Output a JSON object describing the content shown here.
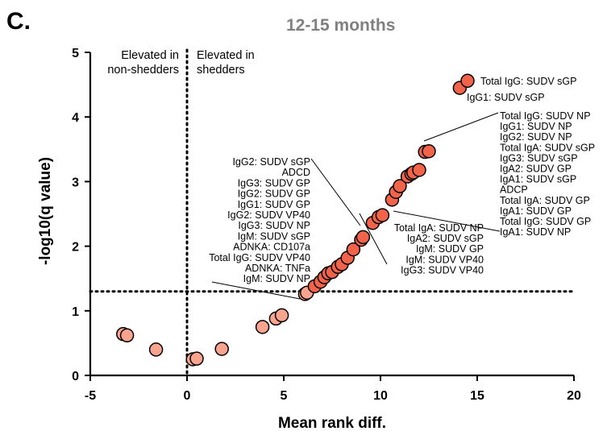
{
  "panel_letter": "C.",
  "chart_data": {
    "type": "scatter",
    "title": "12-15 months",
    "xlabel": "Mean rank diff.",
    "ylabel": "-log10(q value)",
    "xlim": [
      -5,
      20
    ],
    "ylim": [
      0,
      5
    ],
    "xticks": [
      "-5",
      "0",
      "5",
      "10",
      "15",
      "20"
    ],
    "yticks": [
      "0",
      "1",
      "2",
      "3",
      "4",
      "5"
    ],
    "reference_lines": {
      "x": 0,
      "y": 1.3
    },
    "region_labels": {
      "left": [
        "Elevated in",
        "non-shedders"
      ],
      "right": [
        "Elevated in",
        "shedders"
      ]
    },
    "points": [
      {
        "x": -3.3,
        "y": 0.64
      },
      {
        "x": -3.1,
        "y": 0.62
      },
      {
        "x": -1.6,
        "y": 0.4
      },
      {
        "x": 0.3,
        "y": 0.25
      },
      {
        "x": 0.5,
        "y": 0.26
      },
      {
        "x": 1.8,
        "y": 0.41
      },
      {
        "x": 3.9,
        "y": 0.75
      },
      {
        "x": 4.6,
        "y": 0.88
      },
      {
        "x": 4.9,
        "y": 0.93
      },
      {
        "x": 6.1,
        "y": 1.26
      },
      {
        "x": 6.2,
        "y": 1.28
      },
      {
        "x": 6.6,
        "y": 1.38
      },
      {
        "x": 6.9,
        "y": 1.45
      },
      {
        "x": 7.1,
        "y": 1.52
      },
      {
        "x": 7.3,
        "y": 1.58
      },
      {
        "x": 7.5,
        "y": 1.6
      },
      {
        "x": 7.8,
        "y": 1.68
      },
      {
        "x": 8.0,
        "y": 1.72
      },
      {
        "x": 8.3,
        "y": 1.82
      },
      {
        "x": 8.6,
        "y": 1.95
      },
      {
        "x": 9.0,
        "y": 2.1
      },
      {
        "x": 9.1,
        "y": 2.14
      },
      {
        "x": 9.6,
        "y": 2.36
      },
      {
        "x": 9.9,
        "y": 2.45
      },
      {
        "x": 10.1,
        "y": 2.48
      },
      {
        "x": 10.6,
        "y": 2.72
      },
      {
        "x": 10.8,
        "y": 2.84
      },
      {
        "x": 11.0,
        "y": 2.93
      },
      {
        "x": 11.4,
        "y": 3.08
      },
      {
        "x": 11.6,
        "y": 3.12
      },
      {
        "x": 11.7,
        "y": 3.14
      },
      {
        "x": 12.0,
        "y": 3.18
      },
      {
        "x": 12.3,
        "y": 3.46
      },
      {
        "x": 12.5,
        "y": 3.47
      },
      {
        "x": 14.1,
        "y": 4.45
      },
      {
        "x": 14.5,
        "y": 4.56
      }
    ],
    "annotations": {
      "top_right": [
        "Total IgG: SUDV sGP",
        "IgG1: SUDV sGP"
      ],
      "right_upper": [
        "Total IgG: SUDV NP",
        "IgG1: SUDV NP",
        "IgG2: SUDV NP",
        "Total IgA: SUDV sGP",
        "IgG3: SUDV sGP",
        "IgA2: SUDV GP",
        "IgA1: SUDV sGP",
        "ADCP",
        "Total IgA: SUDV GP",
        "IgA1: SUDV GP",
        "Total IgG: SUDV GP",
        "IgA1: SUDV NP"
      ],
      "left_middle": [
        "IgG2: SUDV sGP",
        "ADCD",
        "IgG3: SUDV GP",
        "IgG2: SUDV GP",
        "IgG1: SUDV GP",
        "IgG2: SUDV VP40",
        "IgG3: SUDV NP",
        "IgM: SUDV sGP",
        "ADNKA: CD107a",
        "Total IgG: SUDV VP40",
        "ADNKA: TNFa",
        "IgM: SUDV NP"
      ],
      "center_lower": [
        "Total IgA: SUDV NP",
        "IgA2: SUDV sGP",
        "IgM: SUDV GP",
        "IgM: SUDV VP40",
        "IgG3: SUDV VP40"
      ]
    }
  }
}
